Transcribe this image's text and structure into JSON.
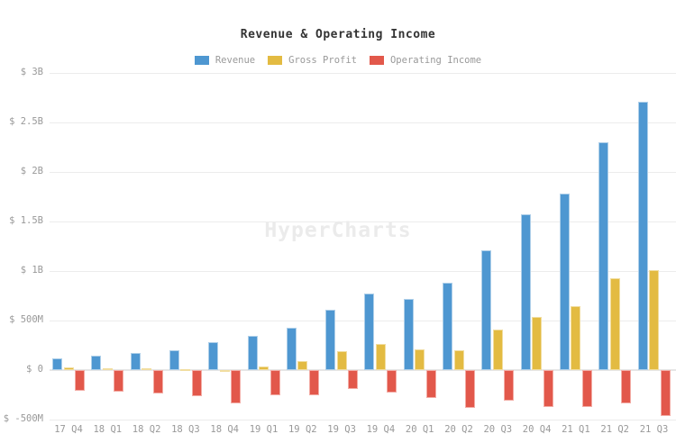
{
  "title": "Revenue & Operating Income",
  "watermark": "HyperCharts",
  "colors": {
    "revenue": "#4e97d1",
    "revenue_border": "#aecfe9",
    "gross_profit": "#e3bb42",
    "gross_profit_border": "#f1dda0",
    "operating_income": "#e2584b",
    "operating_income_border": "#f3aca5",
    "grid": "#ececec",
    "axis_text": "#999999",
    "title_text": "#333333",
    "watermark_text": "#ebebeb"
  },
  "chart_data": {
    "type": "bar",
    "title": "Revenue & Operating Income",
    "unit": "USD millions",
    "categories": [
      "17 Q4",
      "18 Q1",
      "18 Q2",
      "18 Q3",
      "18 Q4",
      "19 Q1",
      "19 Q2",
      "19 Q3",
      "19 Q4",
      "20 Q1",
      "20 Q2",
      "20 Q3",
      "20 Q4",
      "21 Q1",
      "21 Q2",
      "21 Q3"
    ],
    "series": [
      {
        "name": "Revenue",
        "color": "#4e97d1",
        "border_color": "#aecfe9",
        "values": [
          115,
          150,
          175,
          200,
          280,
          350,
          430,
          610,
          775,
          715,
          885,
          1210,
          1570,
          1780,
          2300,
          2710
        ]
      },
      {
        "name": "Gross Profit",
        "color": "#e3bb42",
        "border_color": "#f1dda0",
        "values": [
          30,
          15,
          15,
          10,
          -15,
          40,
          95,
          195,
          265,
          205,
          200,
          405,
          535,
          650,
          930,
          1010
        ]
      },
      {
        "name": "Operating Income",
        "color": "#e2584b",
        "border_color": "#f3aca5",
        "values": [
          -205,
          -215,
          -235,
          -260,
          -340,
          -250,
          -250,
          -195,
          -225,
          -280,
          -380,
          -310,
          -370,
          -370,
          -340,
          -465
        ]
      }
    ],
    "y_ticks": [
      {
        "label": "$ 3B",
        "value": 3000
      },
      {
        "label": "$ 2.5B",
        "value": 2500
      },
      {
        "label": "$ 2B",
        "value": 2000
      },
      {
        "label": "$ 1.5B",
        "value": 1500
      },
      {
        "label": "$ 1B",
        "value": 1000
      },
      {
        "label": "$ 500M",
        "value": 500
      },
      {
        "label": "$ 0",
        "value": 0
      },
      {
        "label": "$ -500M",
        "value": -500
      }
    ],
    "ylim": [
      -500,
      3000
    ],
    "grid": true,
    "legend_position": "top"
  }
}
